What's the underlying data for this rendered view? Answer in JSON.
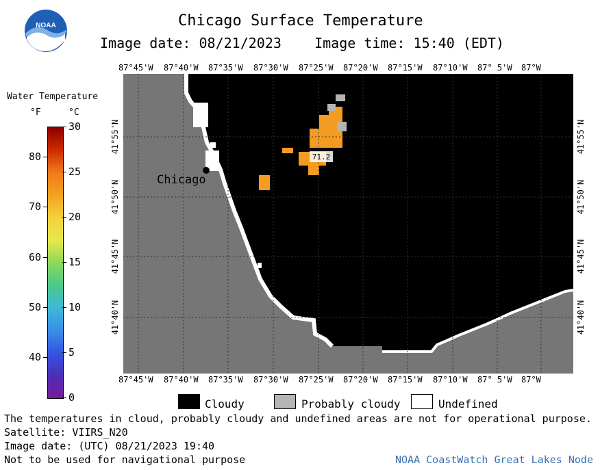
{
  "header": {
    "title": "Chicago Surface Temperature",
    "image_date_line": "Image date: 08/21/2023    Image time: 15:40 (EDT)",
    "logo_text": "NOAA"
  },
  "colorbar": {
    "title": "Water Temperature",
    "unit_f": "°F",
    "unit_c": "°C",
    "f_ticks": [
      "80",
      "70",
      "60",
      "50",
      "40"
    ],
    "c_ticks": [
      "30",
      "25",
      "20",
      "15",
      "10",
      "5",
      "0"
    ],
    "gradient_colors": [
      "#8b0000",
      "#cc2a00",
      "#f07a1a",
      "#f5a020",
      "#f3d23a",
      "#e6e84a",
      "#8ed85a",
      "#4cc88a",
      "#3fb8d8",
      "#3a8ee8",
      "#3355e0",
      "#4a2fb8",
      "#7a1a9a"
    ]
  },
  "map": {
    "lon_ticks": [
      "87°45'W",
      "87°40'W",
      "87°35'W",
      "87°30'W",
      "87°25'W",
      "87°20'W",
      "87°15'W",
      "87°10'W",
      "87° 5'W",
      "87°W"
    ],
    "lat_ticks": [
      "41°55'N",
      "41°50'N",
      "41°45'N",
      "41°40'N"
    ],
    "city_label": "Chicago",
    "point_value": "71.2",
    "colors": {
      "land": "#767676",
      "cloudy": "#000000",
      "probably_cloudy": "#b4b4b4",
      "undefined": "#ffffff",
      "water_warm": "#f49b22"
    }
  },
  "legend": {
    "items": [
      {
        "label": "Cloudy",
        "color": "#000000"
      },
      {
        "label": "Probably cloudy",
        "color": "#b4b4b4"
      },
      {
        "label": "Undefined",
        "color": "#ffffff"
      }
    ]
  },
  "footer": {
    "disclaimer": "The temperatures in cloud, probably cloudy and undefined areas are not for operational purpose.",
    "satellite": "Satellite: VIIRS_N20",
    "utc_date": "Image date: (UTC) 08/21/2023  19:40",
    "nav_warning": "Not to be used for navigational purpose",
    "credit": "NOAA CoastWatch Great Lakes Node",
    "credit_color": "#3a6fb0"
  }
}
